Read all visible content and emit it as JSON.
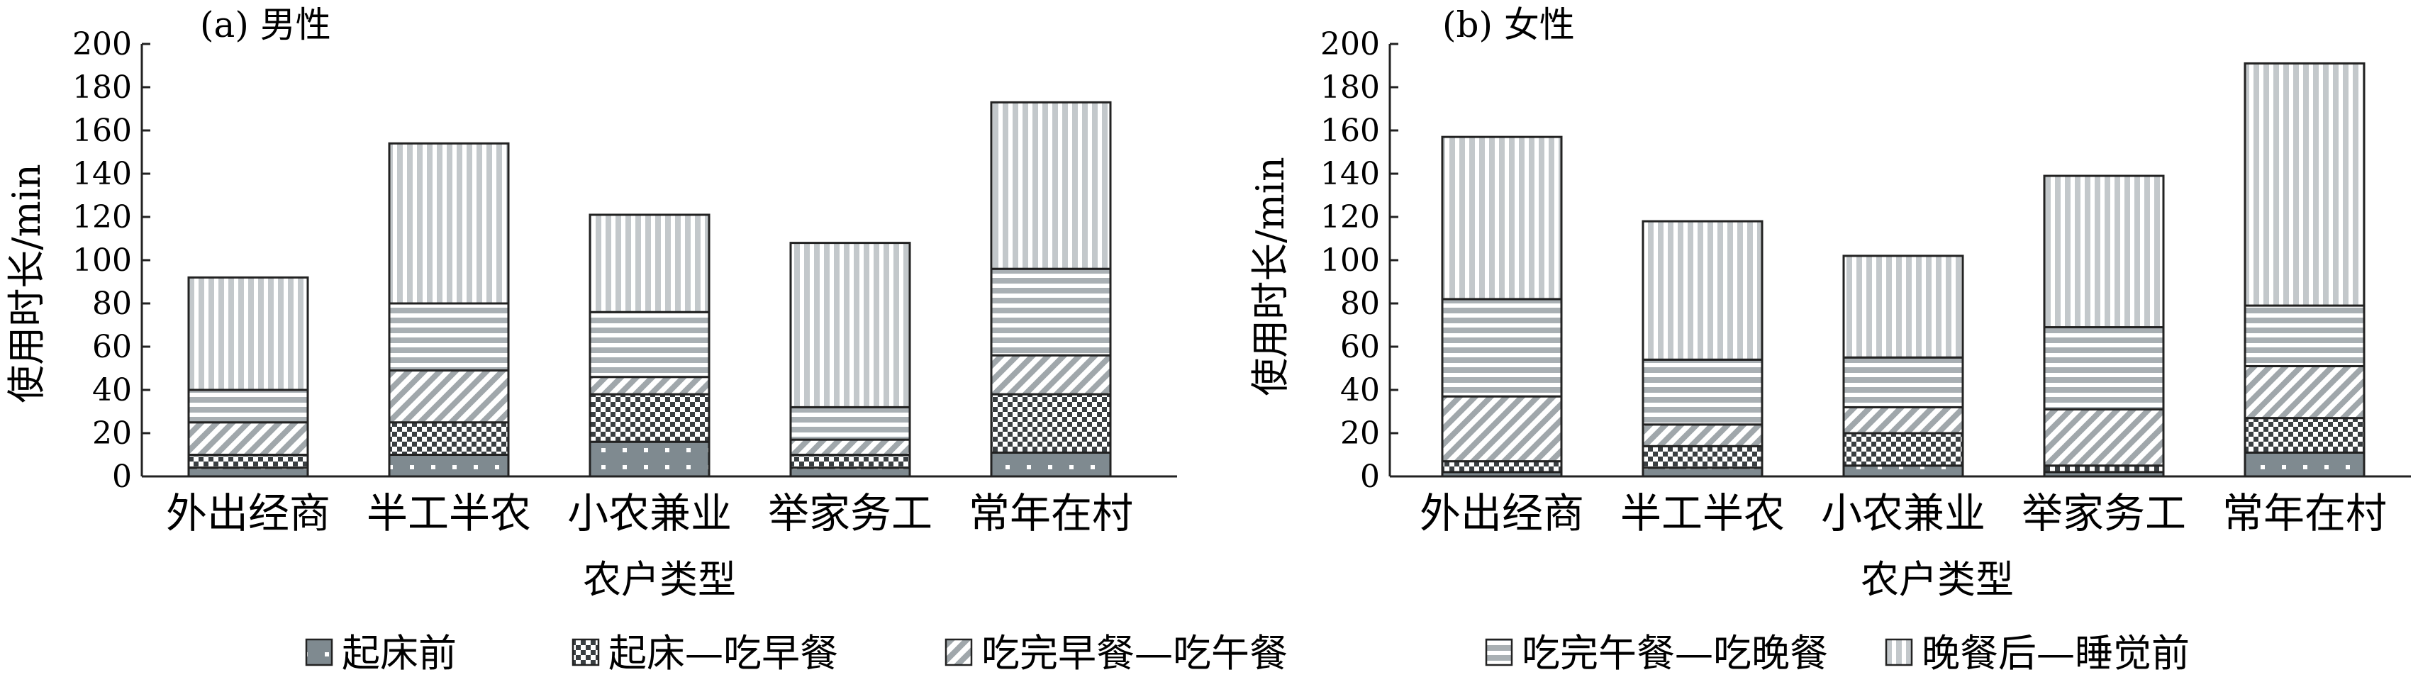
{
  "chart_data": [
    {
      "type": "bar",
      "stacked": true,
      "title": "(a) 男性",
      "xlabel": "农户类型",
      "ylabel": "使用时长/min",
      "ylim": [
        0,
        200
      ],
      "yticks": [
        0,
        20,
        40,
        60,
        80,
        100,
        120,
        140,
        160,
        180,
        200
      ],
      "grid": false,
      "categories": [
        "外出经商",
        "半工半农",
        "小农兼业",
        "举家务工",
        "常年在村"
      ],
      "series": [
        {
          "name": "起床前",
          "values": [
            4,
            10,
            16,
            4,
            11
          ]
        },
        {
          "name": "起床—吃早餐",
          "values": [
            6,
            15,
            22,
            6,
            27
          ]
        },
        {
          "name": "吃完早餐—吃午餐",
          "values": [
            15,
            24,
            8,
            7,
            18
          ]
        },
        {
          "name": "吃完午餐—吃晚餐",
          "values": [
            15,
            31,
            30,
            15,
            40
          ]
        },
        {
          "name": "晚餐后—睡觉前",
          "values": [
            52,
            74,
            45,
            76,
            77
          ]
        }
      ]
    },
    {
      "type": "bar",
      "stacked": true,
      "title": "(b) 女性",
      "xlabel": "农户类型",
      "ylabel": "使用时长/min",
      "ylim": [
        0,
        200
      ],
      "yticks": [
        0,
        20,
        40,
        60,
        80,
        100,
        120,
        140,
        160,
        180,
        200
      ],
      "grid": false,
      "categories": [
        "外出经商",
        "半工半农",
        "小农兼业",
        "举家务工",
        "常年在村"
      ],
      "series": [
        {
          "name": "起床前",
          "values": [
            2,
            4,
            5,
            2,
            11
          ]
        },
        {
          "name": "起床—吃早餐",
          "values": [
            5,
            10,
            15,
            3,
            16
          ]
        },
        {
          "name": "吃完早餐—吃午餐",
          "values": [
            30,
            10,
            12,
            26,
            24
          ]
        },
        {
          "name": "吃完午餐—吃晚餐",
          "values": [
            45,
            30,
            23,
            38,
            28
          ]
        },
        {
          "name": "晚餐后—睡觉前",
          "values": [
            75,
            64,
            47,
            70,
            112
          ]
        }
      ]
    }
  ],
  "legend": {
    "placement": "bottom",
    "items": [
      {
        "label": "起床前",
        "pattern": "dots"
      },
      {
        "label": "起床—吃早餐",
        "pattern": "checker"
      },
      {
        "label": "吃完早餐—吃午餐",
        "pattern": "diagonal"
      },
      {
        "label": "吃完午餐—吃晚餐",
        "pattern": "horizontal"
      },
      {
        "label": "晚餐后—睡觉前",
        "pattern": "vertical"
      }
    ]
  },
  "colors": {
    "dark_fill": "#7f8a90",
    "medium_fill": "#a9b0b4",
    "light_fill": "#c8cdd0",
    "outline": "#222222"
  }
}
